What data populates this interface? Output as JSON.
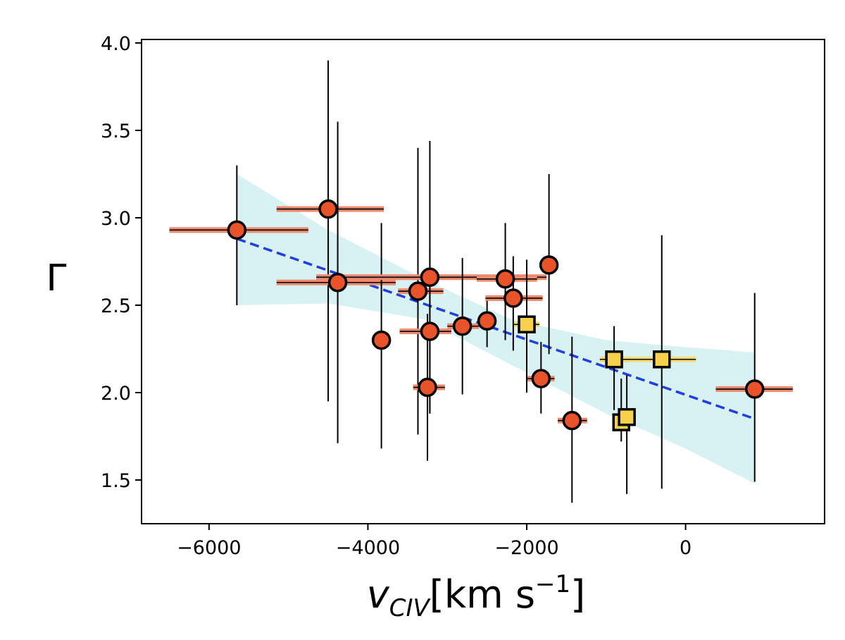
{
  "chart_data": {
    "type": "scatter",
    "xlabel": {
      "main": "v",
      "subscript": "CIV",
      "unit_pre": "[km s",
      "unit_sup": "−1",
      "unit_post": "]"
    },
    "ylabel": "Γ",
    "xlim": [
      -6850,
      1750
    ],
    "ylim": [
      1.25,
      4.02
    ],
    "xticks": [
      -6000,
      -4000,
      -2000,
      0
    ],
    "xtick_labels": [
      "−6000",
      "−4000",
      "−2000",
      "0"
    ],
    "yticks": [
      1.5,
      2.0,
      2.5,
      3.0,
      3.5,
      4.0
    ],
    "ytick_labels": [
      "1.5",
      "2.0",
      "2.5",
      "3.0",
      "3.5",
      "4.0"
    ],
    "grid": false,
    "colors": {
      "circle_fill": "#e8532a",
      "circle_xerr": "#ec8a6e",
      "square_fill": "#f7d04c",
      "square_xerr": "#f5dc78",
      "fit_line": "#1f3fe0",
      "confidence_band": "#d8f1f2"
    },
    "series": [
      {
        "marker": "circle",
        "points": [
          {
            "x": -5650,
            "y": 2.93,
            "xlo": -6500,
            "xhi": -4750,
            "ylo": 2.5,
            "yhi": 3.3
          },
          {
            "x": -4500,
            "y": 3.05,
            "xlo": -5150,
            "xhi": -3800,
            "ylo": 1.95,
            "yhi": 3.9
          },
          {
            "x": -4380,
            "y": 2.63,
            "xlo": -5150,
            "xhi": -3650,
            "ylo": 1.71,
            "yhi": 3.55
          },
          {
            "x": -3830,
            "y": 2.3,
            "xlo": -3850,
            "xhi": -3810,
            "ylo": 1.68,
            "yhi": 2.97
          },
          {
            "x": -3370,
            "y": 2.58,
            "xlo": -3620,
            "xhi": -3050,
            "ylo": 1.76,
            "yhi": 3.4
          },
          {
            "x": -3220,
            "y": 2.66,
            "xlo": -4650,
            "xhi": -1750,
            "ylo": 1.88,
            "yhi": 3.44
          },
          {
            "x": -3220,
            "y": 2.35,
            "xlo": -3600,
            "xhi": -2950,
            "ylo": 1.88,
            "yhi": 2.82
          },
          {
            "x": -3250,
            "y": 2.03,
            "xlo": -3430,
            "xhi": -3030,
            "ylo": 1.61,
            "yhi": 2.45
          },
          {
            "x": -2810,
            "y": 2.38,
            "xlo": -3000,
            "xhi": -2600,
            "ylo": 1.99,
            "yhi": 2.77
          },
          {
            "x": -2500,
            "y": 2.41,
            "xlo": -2600,
            "xhi": -2400,
            "ylo": 2.26,
            "yhi": 2.55
          },
          {
            "x": -2270,
            "y": 2.65,
            "xlo": -2630,
            "xhi": -1870,
            "ylo": 2.3,
            "yhi": 2.97
          },
          {
            "x": -2170,
            "y": 2.54,
            "xlo": -2520,
            "xhi": -1800,
            "ylo": 2.24,
            "yhi": 2.78
          },
          {
            "x": -1820,
            "y": 2.08,
            "xlo": -2000,
            "xhi": -1650,
            "ylo": 1.88,
            "yhi": 2.29
          },
          {
            "x": -1720,
            "y": 2.73,
            "xlo": -1740,
            "xhi": -1700,
            "ylo": 2.22,
            "yhi": 3.25
          },
          {
            "x": -1430,
            "y": 1.84,
            "xlo": -1610,
            "xhi": -1240,
            "ylo": 1.37,
            "yhi": 2.32
          },
          {
            "x": 870,
            "y": 2.02,
            "xlo": 380,
            "xhi": 1350,
            "ylo": 1.49,
            "yhi": 2.57
          }
        ]
      },
      {
        "marker": "square",
        "points": [
          {
            "x": -2000,
            "y": 2.39,
            "xlo": -2160,
            "xhi": -1840,
            "ylo": 2.0,
            "yhi": 2.76
          },
          {
            "x": -900,
            "y": 2.19,
            "xlo": -1080,
            "xhi": -720,
            "ylo": 1.9,
            "yhi": 2.38
          },
          {
            "x": -300,
            "y": 2.19,
            "xlo": -900,
            "xhi": 130,
            "ylo": 1.45,
            "yhi": 2.9
          },
          {
            "x": -810,
            "y": 1.83,
            "xlo": -900,
            "xhi": -720,
            "ylo": 1.72,
            "yhi": 2.08
          },
          {
            "x": -740,
            "y": 1.86,
            "xlo": -800,
            "xhi": -680,
            "ylo": 1.42,
            "yhi": 2.1
          }
        ]
      }
    ],
    "fit": {
      "x": [
        -5650,
        870
      ],
      "y": [
        2.88,
        1.85
      ]
    },
    "band": {
      "x": [
        -5650,
        -4500,
        -3300,
        -2200,
        -1000,
        0,
        870
      ],
      "upper": [
        3.25,
        2.93,
        2.65,
        2.42,
        2.3,
        2.26,
        2.23
      ],
      "lower": [
        2.5,
        2.51,
        2.42,
        2.16,
        1.88,
        1.68,
        1.48
      ]
    }
  }
}
